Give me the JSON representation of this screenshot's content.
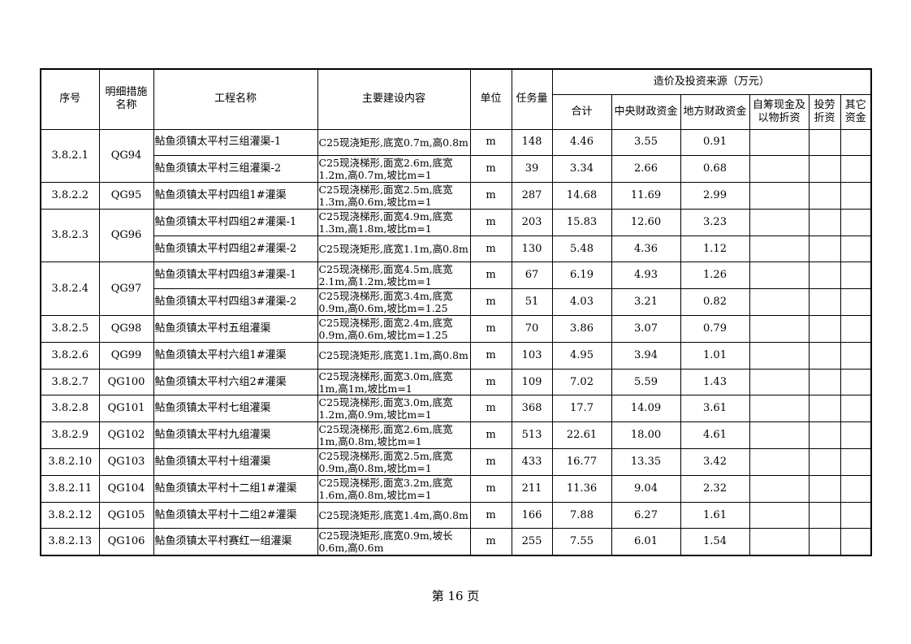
{
  "table": {
    "headers": {
      "seq": "序号",
      "measure": "明细措施名称",
      "project": "工程名称",
      "content": "主要建设内容",
      "unit": "单位",
      "quantity": "任务量",
      "cost_group": "造价及投资来源（万元）",
      "total": "合计",
      "central": "中央财政资金",
      "local": "地方财政资金",
      "self": "自筹现金及以物折资",
      "labor": "投劳折资",
      "other": "其它资金"
    },
    "groups": [
      {
        "seq": "3.8.2.1",
        "measure": "QG94",
        "items": [
          {
            "project": "鲇鱼须镇太平村三组灌渠-1",
            "content": "C25现浇矩形,底宽0.7m,高0.8m",
            "unit": "m",
            "quantity": "148",
            "total": "4.46",
            "central": "3.55",
            "local": "0.91"
          },
          {
            "project": "鲇鱼须镇太平村三组灌渠-2",
            "content": "C25现浇梯形,面宽2.6m,底宽1.2m,高0.7m,坡比m=1",
            "unit": "m",
            "quantity": "39",
            "total": "3.34",
            "central": "2.66",
            "local": "0.68"
          }
        ]
      },
      {
        "seq": "3.8.2.2",
        "measure": "QG95",
        "items": [
          {
            "project": "鲇鱼须镇太平村四组1#灌渠",
            "content": "C25现浇梯形,面宽2.5m,底宽1.3m,高0.6m,坡比m=1",
            "unit": "m",
            "quantity": "287",
            "total": "14.68",
            "central": "11.69",
            "local": "2.99"
          }
        ]
      },
      {
        "seq": "3.8.2.3",
        "measure": "QG96",
        "items": [
          {
            "project": "鲇鱼须镇太平村四组2#灌渠-1",
            "content": "C25现浇梯形,面宽4.9m,底宽1.3m,高1.8m,坡比m=1",
            "unit": "m",
            "quantity": "203",
            "total": "15.83",
            "central": "12.60",
            "local": "3.23"
          },
          {
            "project": "鲇鱼须镇太平村四组2#灌渠-2",
            "content": "C25现浇矩形,底宽1.1m,高0.8m",
            "unit": "m",
            "quantity": "130",
            "total": "5.48",
            "central": "4.36",
            "local": "1.12"
          }
        ]
      },
      {
        "seq": "3.8.2.4",
        "measure": "QG97",
        "items": [
          {
            "project": "鲇鱼须镇太平村四组3#灌渠-1",
            "content": "C25现浇梯形,面宽4.5m,底宽2.1m,高1.2m,坡比m=1",
            "unit": "m",
            "quantity": "67",
            "total": "6.19",
            "central": "4.93",
            "local": "1.26"
          },
          {
            "project": "鲇鱼须镇太平村四组3#灌渠-2",
            "content": "C25现浇梯形,面宽3.4m,底宽0.9m,高0.6m,坡比m=1.25",
            "unit": "m",
            "quantity": "51",
            "total": "4.03",
            "central": "3.21",
            "local": "0.82"
          }
        ]
      },
      {
        "seq": "3.8.2.5",
        "measure": "QG98",
        "items": [
          {
            "project": "鲇鱼须镇太平村五组灌渠",
            "content": "C25现浇梯形,面宽2.4m,底宽0.9m,高0.6m,坡比m=1.25",
            "unit": "m",
            "quantity": "70",
            "total": "3.86",
            "central": "3.07",
            "local": "0.79"
          }
        ]
      },
      {
        "seq": "3.8.2.6",
        "measure": "QG99",
        "items": [
          {
            "project": "鲇鱼须镇太平村六组1#灌渠",
            "content": "C25现浇矩形,底宽1.1m,高0.8m",
            "unit": "m",
            "quantity": "103",
            "total": "4.95",
            "central": "3.94",
            "local": "1.01"
          }
        ]
      },
      {
        "seq": "3.8.2.7",
        "measure": "QG100",
        "items": [
          {
            "project": "鲇鱼须镇太平村六组2#灌渠",
            "content": "C25现浇梯形,面宽3.0m,底宽1m,高1m,坡比m=1",
            "unit": "m",
            "quantity": "109",
            "total": "7.02",
            "central": "5.59",
            "local": "1.43"
          }
        ]
      },
      {
        "seq": "3.8.2.8",
        "measure": "QG101",
        "items": [
          {
            "project": "鲇鱼须镇太平村七组灌渠",
            "content": "C25现浇梯形,面宽3.0m,底宽1.2m,高0.9m,坡比m=1",
            "unit": "m",
            "quantity": "368",
            "total": "17.7",
            "central": "14.09",
            "local": "3.61"
          }
        ]
      },
      {
        "seq": "3.8.2.9",
        "measure": "QG102",
        "items": [
          {
            "project": "鲇鱼须镇太平村九组灌渠",
            "content": "C25现浇梯形,面宽2.6m,底宽1m,高0.8m,坡比m=1",
            "unit": "m",
            "quantity": "513",
            "total": "22.61",
            "central": "18.00",
            "local": "4.61"
          }
        ]
      },
      {
        "seq": "3.8.2.10",
        "measure": "QG103",
        "items": [
          {
            "project": "鲇鱼须镇太平村十组灌渠",
            "content": "C25现浇梯形,面宽2.5m,底宽0.9m,高0.8m,坡比m=1",
            "unit": "m",
            "quantity": "433",
            "total": "16.77",
            "central": "13.35",
            "local": "3.42"
          }
        ]
      },
      {
        "seq": "3.8.2.11",
        "measure": "QG104",
        "items": [
          {
            "project": "鲇鱼须镇太平村十二组1#灌渠",
            "content": "C25现浇梯形,面宽3.2m,底宽1.6m,高0.8m,坡比m=1",
            "unit": "m",
            "quantity": "211",
            "total": "11.36",
            "central": "9.04",
            "local": "2.32"
          }
        ]
      },
      {
        "seq": "3.8.2.12",
        "measure": "QG105",
        "items": [
          {
            "project": "鲇鱼须镇太平村十二组2#灌渠",
            "content": "C25现浇矩形,底宽1.4m,高0.8m",
            "unit": "m",
            "quantity": "166",
            "total": "7.88",
            "central": "6.27",
            "local": "1.61"
          }
        ]
      },
      {
        "seq": "3.8.2.13",
        "measure": "QG106",
        "items": [
          {
            "project": "鲇鱼须镇太平村赛红一组灌渠",
            "content": "C25现浇矩形,底宽0.9m,坡长0.6m,高0.6m",
            "unit": "m",
            "quantity": "255",
            "total": "7.55",
            "central": "6.01",
            "local": "1.54"
          }
        ]
      }
    ]
  },
  "footer": {
    "page_label": "第 16 页"
  }
}
